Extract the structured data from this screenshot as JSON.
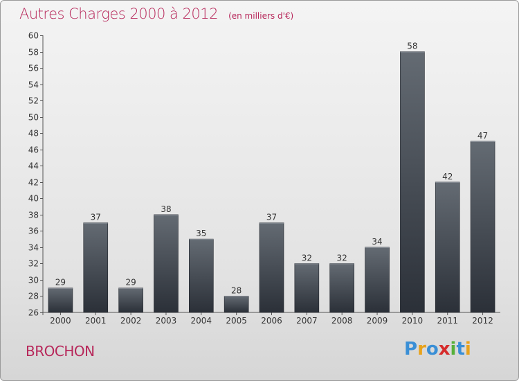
{
  "header": {
    "title": "Autres Charges 2000 à 2012",
    "unit": "(en milliers d'€)"
  },
  "town": "BROCHON",
  "logo": {
    "text": "Proxiti",
    "letters": [
      {
        "ch": "P",
        "color": "#3a8fd6"
      },
      {
        "ch": "r",
        "color": "#e8a21b"
      },
      {
        "ch": "o",
        "color": "#3a8fd6"
      },
      {
        "ch": "x",
        "color": "#d62b2b"
      },
      {
        "ch": "i",
        "color": "#56b03a"
      },
      {
        "ch": "t",
        "color": "#3a8fd6"
      },
      {
        "ch": "i",
        "color": "#e8a21b"
      }
    ]
  },
  "colors": {
    "title": "#b7275a",
    "bar_top": "#646b73",
    "bar_bottom": "#2b3038"
  },
  "chart_data": {
    "type": "bar",
    "title": "Autres Charges 2000 à 2012",
    "subtitle": "(en milliers d'€)",
    "categories": [
      "2000",
      "2001",
      "2002",
      "2003",
      "2004",
      "2005",
      "2006",
      "2007",
      "2008",
      "2009",
      "2010",
      "2011",
      "2012"
    ],
    "values": [
      29,
      37,
      29,
      38,
      35,
      28,
      37,
      32,
      32,
      34,
      58,
      42,
      47
    ],
    "ylim": [
      26,
      60
    ],
    "ytick_step": 2,
    "grid": false,
    "data_labels": true
  }
}
